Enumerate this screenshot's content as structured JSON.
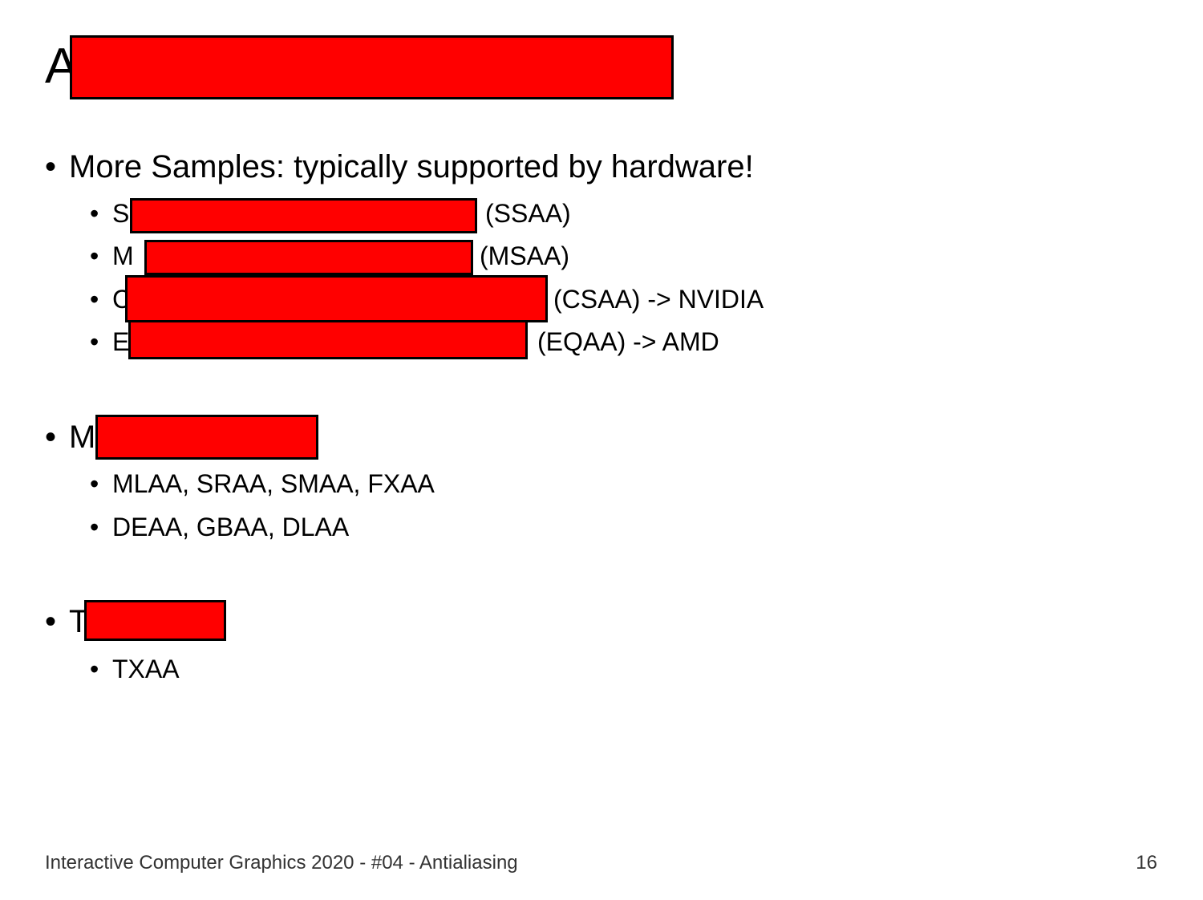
{
  "slide": {
    "title": "A",
    "sections": [
      {
        "text": "More Samples: typically supported by hardware!",
        "items": [
          {
            "prefix": "S",
            "suffix": "(SSAA)"
          },
          {
            "prefix": "M",
            "suffix": "(MSAA)"
          },
          {
            "prefix": "C",
            "suffix": "(CSAA) -> NVIDIA"
          },
          {
            "prefix": "E",
            "suffix": "(EQAA) -> AMD"
          }
        ]
      },
      {
        "text": "M",
        "items": [
          {
            "text": "MLAA, SRAA, SMAA, FXAA"
          },
          {
            "text": "DEAA, GBAA, DLAA"
          }
        ]
      },
      {
        "text": "T",
        "items": [
          {
            "text": "TXAA"
          }
        ]
      }
    ],
    "footer": "Interactive Computer Graphics 2020 - #04 - Antialiasing",
    "page_number": "16"
  }
}
